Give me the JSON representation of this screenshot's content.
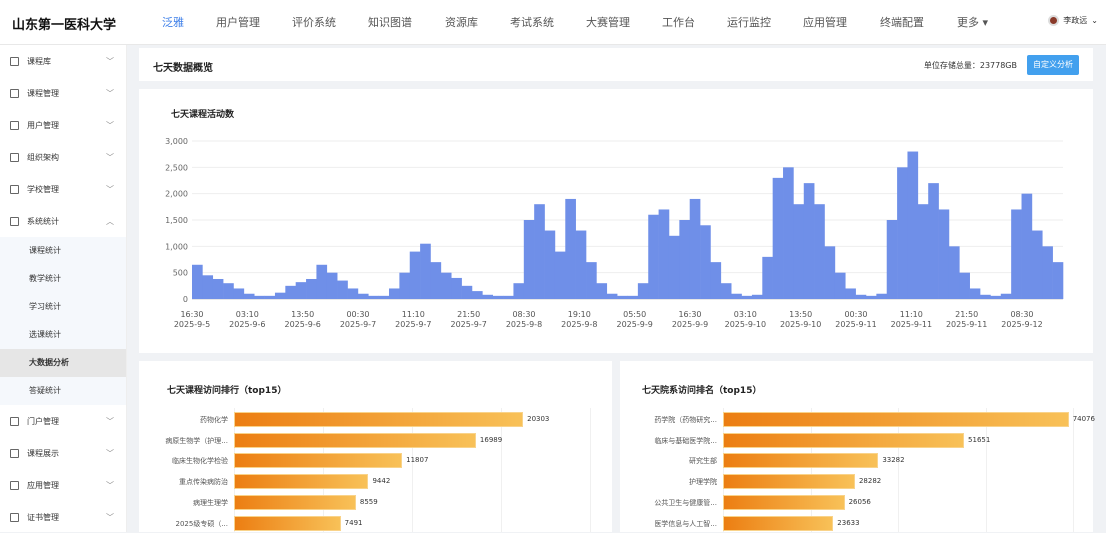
{
  "header": {
    "logo": "山东第一医科大学",
    "nav": [
      "泛雅",
      "用户管理",
      "评价系统",
      "知识图谱",
      "资源库",
      "考试系统",
      "大赛管理",
      "工作台",
      "运行监控",
      "应用管理",
      "终端配置",
      "更多 ▾"
    ],
    "active_nav": 0,
    "user": "李政远"
  },
  "sidebar": {
    "items": [
      {
        "label": "课程库",
        "icon": "book-icon"
      },
      {
        "label": "课程管理",
        "icon": "book-icon"
      },
      {
        "label": "用户管理",
        "icon": "user-icon"
      },
      {
        "label": "组织架构",
        "icon": "grid-icon"
      },
      {
        "label": "学校管理",
        "icon": "grid-icon"
      },
      {
        "label": "系统统计",
        "icon": "chart-icon",
        "expanded": true
      }
    ],
    "sub_items": [
      "课程统计",
      "教学统计",
      "学习统计",
      "选课统计",
      "大数据分析",
      "答疑统计"
    ],
    "active_sub": 4,
    "items_after": [
      {
        "label": "门户管理",
        "icon": "calendar-icon"
      },
      {
        "label": "课程展示",
        "icon": "grid-icon"
      },
      {
        "label": "应用管理",
        "icon": "gear-icon"
      },
      {
        "label": "证书管理",
        "icon": "grid-icon"
      }
    ]
  },
  "overview": {
    "title": "七天数据概览",
    "storage_label": "单位存储总量：",
    "storage_value": "23778GB",
    "custom_button": "自定义分析"
  },
  "chart_data": [
    {
      "type": "area",
      "title": "七天课程活动数",
      "ylim": [
        0,
        3000
      ],
      "yticks": [
        "0",
        "500",
        "1,000",
        "1,500",
        "2,000",
        "2,500",
        "3,000"
      ],
      "grid": true,
      "color": "#6f8fe8",
      "xticks": [
        [
          "16:30",
          "2025-9-5"
        ],
        [
          "03:10",
          "2025-9-6"
        ],
        [
          "13:50",
          "2025-9-6"
        ],
        [
          "00:30",
          "2025-9-7"
        ],
        [
          "11:10",
          "2025-9-7"
        ],
        [
          "21:50",
          "2025-9-7"
        ],
        [
          "08:30",
          "2025-9-8"
        ],
        [
          "19:10",
          "2025-9-8"
        ],
        [
          "05:50",
          "2025-9-9"
        ],
        [
          "16:30",
          "2025-9-9"
        ],
        [
          "03:10",
          "2025-9-10"
        ],
        [
          "13:50",
          "2025-9-10"
        ],
        [
          "00:30",
          "2025-9-11"
        ],
        [
          "11:10",
          "2025-9-11"
        ],
        [
          "21:50",
          "2025-9-11"
        ],
        [
          "08:30",
          "2025-9-12"
        ]
      ],
      "values": [
        650,
        450,
        380,
        300,
        200,
        100,
        60,
        60,
        120,
        250,
        320,
        380,
        650,
        500,
        350,
        200,
        100,
        60,
        60,
        200,
        500,
        900,
        1050,
        700,
        500,
        400,
        250,
        150,
        80,
        60,
        60,
        300,
        1500,
        1800,
        1300,
        900,
        1900,
        1300,
        700,
        300,
        100,
        60,
        60,
        300,
        1600,
        1700,
        1200,
        1500,
        1900,
        1400,
        700,
        300,
        100,
        60,
        80,
        800,
        2300,
        2500,
        1800,
        2200,
        1800,
        1000,
        500,
        200,
        80,
        60,
        100,
        1500,
        2500,
        2800,
        1800,
        2200,
        1700,
        1000,
        500,
        200,
        80,
        60,
        100,
        1700,
        2000,
        1300,
        1000,
        700
      ]
    },
    {
      "type": "bar",
      "title": "七天课程访问排行（top15）",
      "xlim": [
        0,
        25000
      ],
      "categories": [
        "药物化学",
        "病原生物学（护理...",
        "临床生物化学检验",
        "重点传染病防治",
        "病理生理学",
        "2025级专硕（..."
      ],
      "values": [
        20303,
        16989,
        11807,
        9442,
        8559,
        7491
      ]
    },
    {
      "type": "bar",
      "title": "七天院系访问排名（top15）",
      "xlim": [
        0,
        75000
      ],
      "categories": [
        "药学院（药物研究...",
        "临床与基础医学院...",
        "研究生部",
        "护理学院",
        "公共卫生与健康管...",
        "医学信息与人工智..."
      ],
      "values": [
        74076,
        51651,
        33282,
        28282,
        26056,
        23633
      ]
    }
  ]
}
